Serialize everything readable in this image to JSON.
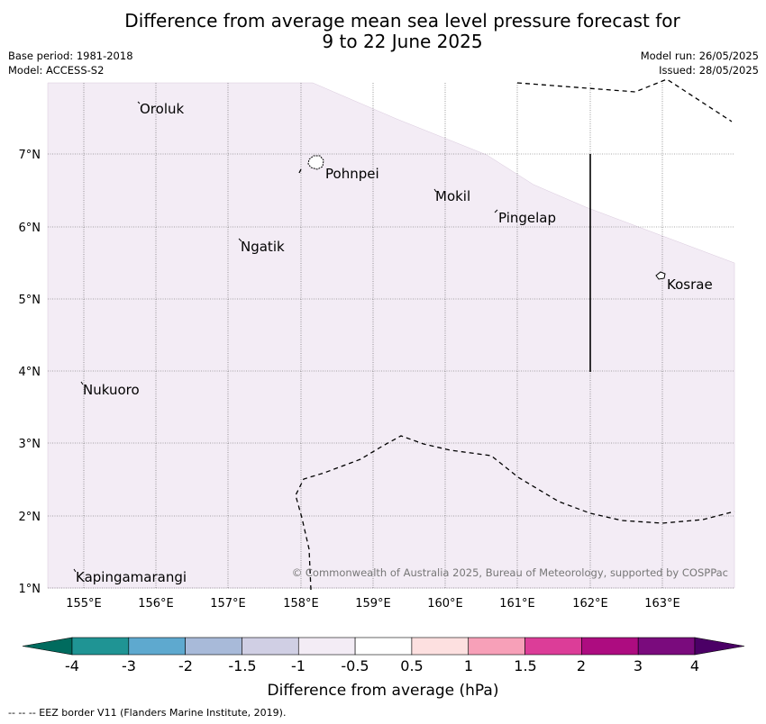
{
  "title": {
    "line1": "Difference from average mean sea level pressure forecast for",
    "line2": "9 to 22 June 2025"
  },
  "meta": {
    "base_period": "Base period: 1981-2018",
    "model": "Model: ACCESS-S2",
    "model_run": "Model run: 26/05/2025",
    "issued": "Issued: 28/05/2025"
  },
  "map": {
    "x_ticks": [
      "155°E",
      "156°E",
      "157°E",
      "158°E",
      "159°E",
      "160°E",
      "161°E",
      "162°E",
      "163°E"
    ],
    "y_ticks": [
      "7°N",
      "6°N",
      "5°N",
      "4°N",
      "3°N",
      "2°N",
      "1°N"
    ],
    "places": [
      "Oroluk",
      "Pohnpei",
      "Mokil",
      "Pingelap",
      "Ngatik",
      "Kosrae",
      "Nukuoro",
      "Kapingamarangi"
    ],
    "copyright": "© Commonwealth of Australia 2025, Bureau of Meteorology, supported by COSPPac",
    "shading_color": "#f3ecf5"
  },
  "colorbar": {
    "labels": [
      "-4",
      "-3",
      "-2",
      "-1.5",
      "-1",
      "-0.5",
      "0.5",
      "1",
      "1.5",
      "2",
      "3",
      "4"
    ],
    "colors": [
      "#006b5e",
      "#1f9494",
      "#5ea9cf",
      "#a8bad9",
      "#d0cfe4",
      "#f3ecf5",
      "#ffffff",
      "#fde0e0",
      "#f7a0b8",
      "#dc3d98",
      "#ad0c80",
      "#7a0b7d",
      "#4b0066"
    ],
    "label": "Difference from average (hPa)"
  },
  "footer": "--  --  -- EEZ border V11 (Flanders Marine Institute, 2019)."
}
